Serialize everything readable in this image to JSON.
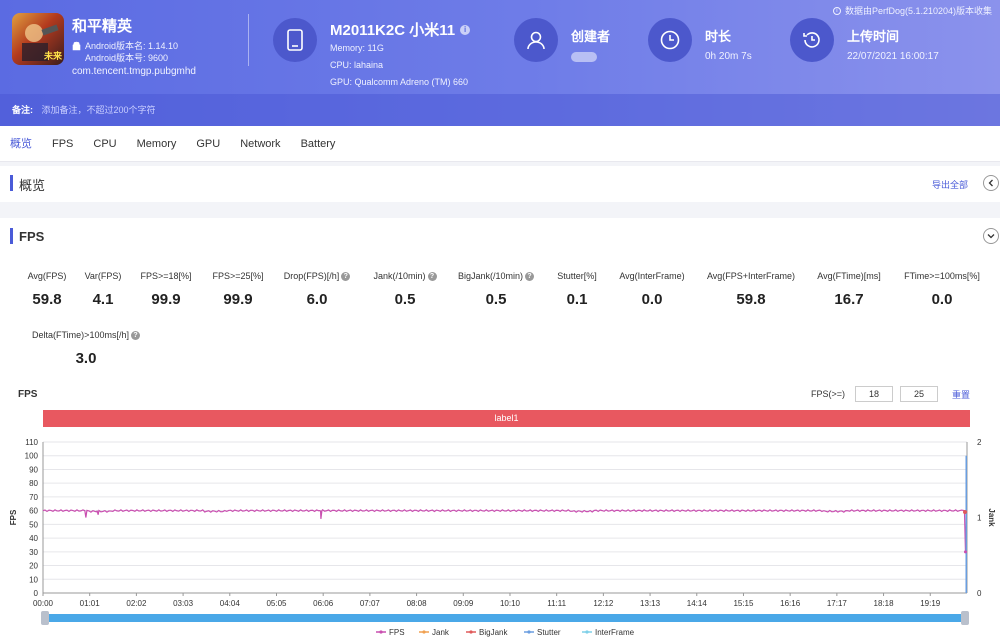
{
  "header": {
    "app": {
      "name": "和平精英",
      "android_version_name": "Android版本名: 1.14.10",
      "android_version_code": "Android版本号: 9600",
      "package": "com.tencent.tmgp.pubgmhd",
      "icon_tag": "未来"
    },
    "device": {
      "title": "M2011K2C 小米11",
      "memory": "Memory: 11G",
      "cpu": "CPU: lahaina",
      "gpu": "GPU: Qualcomm Adreno (TM) 660"
    },
    "creator": {
      "title": "创建者"
    },
    "duration": {
      "title": "时长",
      "value": "0h 20m 7s"
    },
    "upload": {
      "title": "上传时间",
      "value": "22/07/2021 16:00:17"
    },
    "collected_by": "数据由PerfDog(5.1.210204)版本收集",
    "note_label": "备注:",
    "note_placeholder": "添加备注，不超过200个字符",
    "accent_color": "#5b6be2"
  },
  "tabs": [
    "概览",
    "FPS",
    "CPU",
    "Memory",
    "GPU",
    "Network",
    "Battery"
  ],
  "overview": {
    "title": "概览",
    "export": "导出全部"
  },
  "fps_section": {
    "title": "FPS",
    "metrics": [
      {
        "label": "Avg(FPS)",
        "value": "59.8",
        "help": false
      },
      {
        "label": "Var(FPS)",
        "value": "4.1",
        "help": false
      },
      {
        "label": "FPS>=18[%]",
        "value": "99.9",
        "help": false
      },
      {
        "label": "FPS>=25[%]",
        "value": "99.9",
        "help": false
      },
      {
        "label": "Drop(FPS)[/h]",
        "value": "6.0",
        "help": true
      },
      {
        "label": "Jank(/10min)",
        "value": "0.5",
        "help": true
      },
      {
        "label": "BigJank(/10min)",
        "value": "0.5",
        "help": true
      },
      {
        "label": "Stutter[%]",
        "value": "0.1",
        "help": false
      },
      {
        "label": "Avg(InterFrame)",
        "value": "0.0",
        "help": false
      },
      {
        "label": "Avg(FPS+InterFrame)",
        "value": "59.8",
        "help": false
      },
      {
        "label": "Avg(FTime)[ms]",
        "value": "16.7",
        "help": false
      },
      {
        "label": "FTime>=100ms[%]",
        "value": "0.0",
        "help": false
      },
      {
        "label": "Delta(FTime)>100ms[/h]",
        "value": "3.0",
        "help": true
      }
    ],
    "chart_title": "FPS",
    "threshold_label": "FPS(>=)",
    "threshold_1": "18",
    "threshold_2": "25",
    "reset": "重置",
    "band_label": "label1"
  },
  "chart_data": {
    "type": "line",
    "title": "",
    "xlabel": "",
    "ylabel": "FPS",
    "y2label": "Jank",
    "ylim": [
      0,
      110
    ],
    "y2lim": [
      0,
      2
    ],
    "yticks": [
      0,
      10,
      20,
      30,
      40,
      50,
      60,
      70,
      80,
      90,
      100,
      110
    ],
    "y2ticks": [
      0,
      1,
      2
    ],
    "xticks": [
      "00:00",
      "01:01",
      "02:02",
      "03:03",
      "04:04",
      "05:05",
      "06:06",
      "07:07",
      "08:08",
      "09:09",
      "10:10",
      "11:11",
      "12:12",
      "13:13",
      "14:14",
      "15:15",
      "16:16",
      "17:17",
      "18:18",
      "19:19"
    ],
    "grid": true,
    "legend": "bottom",
    "series": [
      {
        "name": "FPS",
        "color": "#c94fb0",
        "values": [
          60,
          60,
          59.5,
          60,
          60,
          60,
          60,
          59.5,
          60,
          60,
          60,
          60,
          60,
          60,
          60,
          60,
          60,
          60,
          60,
          60,
          60,
          60,
          60,
          59.5,
          60,
          60,
          60,
          60,
          60,
          60,
          60,
          60,
          60,
          60,
          59.5,
          60,
          60,
          60,
          60,
          60,
          60
        ]
      },
      {
        "name": "Jank",
        "color": "#f0a050",
        "values": []
      },
      {
        "name": "BigJank",
        "color": "#e05a5a",
        "values": []
      },
      {
        "name": "Stutter",
        "color": "#6a9ee0",
        "values": []
      },
      {
        "name": "InterFrame",
        "color": "#7fd0e8",
        "values": []
      }
    ],
    "dips": [
      {
        "time": "00:56",
        "fps": 55
      },
      {
        "time": "01:12",
        "fps": 57
      },
      {
        "time": "06:03",
        "fps": 54
      },
      {
        "time": "20:05",
        "fps": 30
      }
    ],
    "end_spike": {
      "time": "20:06",
      "fps": 100
    }
  }
}
